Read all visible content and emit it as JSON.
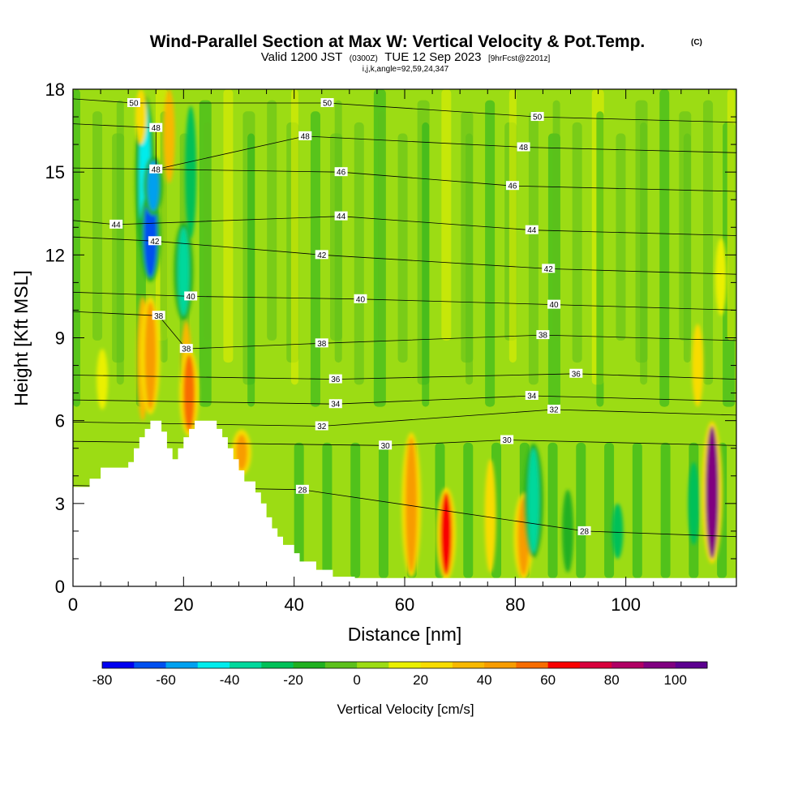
{
  "chart_data": {
    "type": "heatmap",
    "title": "Wind-Parallel Section at Max W: Vertical Velocity & Pot.Temp.",
    "title_mark": "(C)",
    "subtitle_main": "Valid 1200 JST",
    "subtitle_z": "(0300Z)",
    "subtitle_date": "TUE 12 Sep 2023",
    "subtitle_fcst": "[9hrFcst@2201z]",
    "info_line": "i,j,k,angle=92,59,24,347",
    "xlabel": "Distance [nm]",
    "ylabel": "Height [Kft MSL]",
    "xlim": [
      0,
      120
    ],
    "ylim": [
      0,
      18
    ],
    "x_ticks": [
      0,
      20,
      40,
      60,
      80,
      100
    ],
    "x_tick_labels": [
      "0",
      "20",
      "40",
      "60",
      "80",
      "100"
    ],
    "y_ticks": [
      0,
      3,
      6,
      9,
      12,
      15,
      18
    ],
    "y_tick_labels": [
      "0",
      "3",
      "6",
      "9",
      "12",
      "15",
      "18"
    ],
    "colorbar": {
      "label": "Vertical Velocity [cm/s]",
      "levels": [
        -80,
        -70,
        -60,
        -50,
        -40,
        -30,
        -20,
        -10,
        0,
        10,
        20,
        30,
        40,
        50,
        60,
        70,
        80,
        90,
        100,
        110
      ],
      "tick_values": [
        -80,
        -60,
        -40,
        -20,
        0,
        20,
        40,
        60,
        80,
        100
      ],
      "tick_labels": [
        "-80",
        "-60",
        "-40",
        "-20",
        "0",
        "20",
        "40",
        "60",
        "80",
        "100"
      ],
      "colors": [
        "#0000f0",
        "#0050f0",
        "#00a0f0",
        "#00ecec",
        "#00d89c",
        "#00c058",
        "#20b020",
        "#5cc01c",
        "#9cdc14",
        "#eaf000",
        "#f8dc00",
        "#f8b800",
        "#f89c00",
        "#f86c00",
        "#f80000",
        "#d8003c",
        "#b00064",
        "#800080",
        "#5c0090"
      ]
    },
    "terrain_kft": [
      [
        0,
        3.6
      ],
      [
        3,
        3.6
      ],
      [
        3,
        3.9
      ],
      [
        5,
        3.9
      ],
      [
        5,
        4.3
      ],
      [
        10,
        4.3
      ],
      [
        10,
        4.5
      ],
      [
        11,
        4.5
      ],
      [
        11,
        5.0
      ],
      [
        12,
        5.0
      ],
      [
        12,
        5.4
      ],
      [
        13,
        5.4
      ],
      [
        13,
        5.7
      ],
      [
        14,
        5.7
      ],
      [
        14,
        6.0
      ],
      [
        16,
        6.0
      ],
      [
        16,
        5.6
      ],
      [
        17,
        5.6
      ],
      [
        17,
        5.0
      ],
      [
        18,
        5.0
      ],
      [
        18,
        4.6
      ],
      [
        19,
        4.6
      ],
      [
        19,
        5.0
      ],
      [
        20,
        5.0
      ],
      [
        20,
        5.4
      ],
      [
        21,
        5.4
      ],
      [
        21,
        5.7
      ],
      [
        22,
        5.7
      ],
      [
        22,
        6.0
      ],
      [
        26,
        6.0
      ],
      [
        26,
        5.7
      ],
      [
        27,
        5.7
      ],
      [
        27,
        5.4
      ],
      [
        28,
        5.4
      ],
      [
        28,
        5.0
      ],
      [
        29,
        5.0
      ],
      [
        29,
        4.6
      ],
      [
        30,
        4.6
      ],
      [
        30,
        4.2
      ],
      [
        31,
        4.2
      ],
      [
        31,
        3.8
      ],
      [
        33,
        3.8
      ],
      [
        33,
        3.4
      ],
      [
        34,
        3.4
      ],
      [
        34,
        3.0
      ],
      [
        35,
        3.0
      ],
      [
        35,
        2.5
      ],
      [
        36,
        2.5
      ],
      [
        36,
        2.1
      ],
      [
        37,
        2.1
      ],
      [
        37,
        1.8
      ],
      [
        38,
        1.8
      ],
      [
        38,
        1.5
      ],
      [
        40,
        1.5
      ],
      [
        40,
        1.2
      ],
      [
        41,
        1.2
      ],
      [
        41,
        0.9
      ],
      [
        44,
        0.9
      ],
      [
        44,
        0.6
      ],
      [
        47,
        0.6
      ],
      [
        47,
        0.35
      ],
      [
        51,
        0.35
      ],
      [
        51,
        0.3
      ],
      [
        120,
        0.3
      ]
    ],
    "w_features": [
      {
        "x": 13,
        "y0": 12,
        "y1": 17.6,
        "w": -50
      },
      {
        "x": 14,
        "y0": 11.2,
        "y1": 14.2,
        "w": -70
      },
      {
        "x": 14.5,
        "y0": 13.6,
        "y1": 15.4,
        "w": -60
      },
      {
        "x": 20,
        "y0": 9.8,
        "y1": 13,
        "w": -40
      },
      {
        "x": 21.3,
        "y0": 12.6,
        "y1": 17.4,
        "w": -30
      },
      {
        "x": 12.6,
        "y0": 6,
        "y1": 10.5,
        "w": 30
      },
      {
        "x": 14,
        "y0": 6.4,
        "y1": 10.3,
        "w": 45
      },
      {
        "x": 20.5,
        "y0": 5.6,
        "y1": 9.6,
        "w": 30
      },
      {
        "x": 21,
        "y0": 5.6,
        "y1": 8.4,
        "w": 55
      },
      {
        "x": 17.4,
        "y0": 14.6,
        "y1": 18,
        "w": 30
      },
      {
        "x": 12.3,
        "y0": 16,
        "y1": 18,
        "w": 25
      },
      {
        "x": 5.3,
        "y0": 6.4,
        "y1": 8.6,
        "w": 15
      },
      {
        "x": 30.5,
        "y0": 4.2,
        "y1": 5.5,
        "w": 40
      },
      {
        "x": 61.2,
        "y0": 0.5,
        "y1": 5.4,
        "w": 40
      },
      {
        "x": 67.5,
        "y0": 0.4,
        "y1": 3.4,
        "w": 60
      },
      {
        "x": 75.5,
        "y0": 0.5,
        "y1": 4.6,
        "w": 20
      },
      {
        "x": 81.5,
        "y0": 0.4,
        "y1": 3.2,
        "w": 45
      },
      {
        "x": 83.3,
        "y0": 1.2,
        "y1": 5,
        "w": -40
      },
      {
        "x": 89.5,
        "y0": 0.5,
        "y1": 3.5,
        "w": -20
      },
      {
        "x": 98.5,
        "y0": 1,
        "y1": 3,
        "w": -30
      },
      {
        "x": 112.3,
        "y0": 1.5,
        "y1": 4.5,
        "w": -30
      },
      {
        "x": 115.6,
        "y0": 1,
        "y1": 5.8,
        "w": 95
      },
      {
        "x": 113,
        "y0": 6.5,
        "y1": 9.5,
        "w": 20
      },
      {
        "x": 117.2,
        "y0": 9.8,
        "y1": 12.6,
        "w": 15
      }
    ],
    "theta_contours": [
      {
        "label": "28",
        "label_points": [
          [
            41.5,
            3.5
          ],
          [
            92.5,
            2.0
          ]
        ]
      },
      {
        "label": "30",
        "label_points": [
          [
            56.5,
            5.1
          ],
          [
            78.5,
            5.3
          ]
        ]
      },
      {
        "label": "32",
        "label_points": [
          [
            45,
            5.8
          ],
          [
            87,
            6.4
          ]
        ]
      },
      {
        "label": "34",
        "label_points": [
          [
            47.5,
            6.6
          ],
          [
            83,
            6.9
          ]
        ]
      },
      {
        "label": "36",
        "label_points": [
          [
            47.5,
            7.5
          ],
          [
            91,
            7.7
          ]
        ]
      },
      {
        "label": "38",
        "label_points": [
          [
            15.5,
            9.8
          ],
          [
            20.5,
            8.6
          ],
          [
            45,
            8.8
          ],
          [
            85,
            9.1
          ]
        ]
      },
      {
        "label": "40",
        "label_points": [
          [
            21.3,
            10.5
          ],
          [
            52,
            10.4
          ],
          [
            87,
            10.2
          ]
        ]
      },
      {
        "label": "42",
        "label_points": [
          [
            14.8,
            12.5
          ],
          [
            45,
            12.0
          ],
          [
            86,
            11.5
          ]
        ]
      },
      {
        "label": "44",
        "label_points": [
          [
            7.8,
            13.1
          ],
          [
            48.5,
            13.4
          ],
          [
            83,
            12.9
          ]
        ]
      },
      {
        "label": "46",
        "label_points": [
          [
            48.5,
            15.0
          ],
          [
            79.5,
            14.5
          ]
        ]
      },
      {
        "label": "48",
        "label_points": [
          [
            15,
            16.6
          ],
          [
            15,
            15.1
          ],
          [
            42,
            16.3
          ],
          [
            81.5,
            15.9
          ]
        ]
      },
      {
        "label": "50",
        "label_points": [
          [
            11,
            17.5
          ],
          [
            46,
            17.5
          ],
          [
            84,
            17.0
          ]
        ]
      }
    ]
  }
}
